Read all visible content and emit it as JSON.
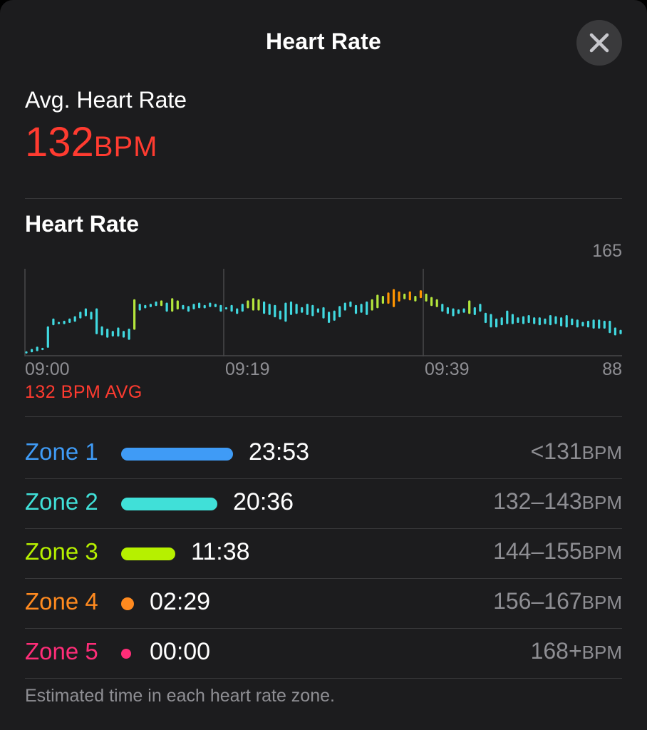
{
  "header": {
    "title": "Heart Rate",
    "close_icon": "close-icon"
  },
  "summary": {
    "label": "Avg. Heart Rate",
    "value": "132",
    "unit": "BPM"
  },
  "section_title": "Heart Rate",
  "chart_data": {
    "type": "range-bar",
    "title": "Heart Rate",
    "y_max_label": "165",
    "y_min_label": "88",
    "ylim": [
      88,
      165
    ],
    "x_labels": [
      "09:00",
      "09:19",
      "09:39"
    ],
    "gridlines": [
      "09:00",
      "09:19",
      "09:39"
    ],
    "avg_label": "132 BPM AVG",
    "avg_value": 132,
    "colors": {
      "zone2": "#40d9e0",
      "zone3": "#b4e63c",
      "zone4": "#ff9500"
    },
    "bars": [
      [
        90,
        92
      ],
      [
        91,
        94
      ],
      [
        92,
        96
      ],
      [
        93,
        95
      ],
      [
        95,
        114
      ],
      [
        115,
        121
      ],
      [
        116,
        118
      ],
      [
        116,
        119
      ],
      [
        117,
        121
      ],
      [
        118,
        123
      ],
      [
        121,
        127
      ],
      [
        123,
        130
      ],
      [
        120,
        127
      ],
      [
        107,
        130
      ],
      [
        106,
        114
      ],
      [
        104,
        112
      ],
      [
        105,
        110
      ],
      [
        105,
        113
      ],
      [
        104,
        110
      ],
      [
        102,
        112
      ],
      [
        111,
        138
      ],
      [
        128,
        134
      ],
      [
        130,
        133
      ],
      [
        131,
        134
      ],
      [
        132,
        136
      ],
      [
        132,
        137
      ],
      [
        127,
        135
      ],
      [
        127,
        139
      ],
      [
        129,
        137
      ],
      [
        129,
        133
      ],
      [
        127,
        132
      ],
      [
        129,
        134
      ],
      [
        130,
        135
      ],
      [
        130,
        133
      ],
      [
        131,
        135
      ],
      [
        131,
        134
      ],
      [
        127,
        133
      ],
      [
        129,
        131
      ],
      [
        127,
        133
      ],
      [
        125,
        130
      ],
      [
        127,
        134
      ],
      [
        130,
        137
      ],
      [
        128,
        139
      ],
      [
        128,
        138
      ],
      [
        125,
        136
      ],
      [
        124,
        134
      ],
      [
        122,
        133
      ],
      [
        120,
        128
      ],
      [
        118,
        135
      ],
      [
        124,
        136
      ],
      [
        125,
        134
      ],
      [
        126,
        131
      ],
      [
        124,
        134
      ],
      [
        123,
        133
      ],
      [
        126,
        130
      ],
      [
        121,
        131
      ],
      [
        117,
        127
      ],
      [
        119,
        128
      ],
      [
        122,
        132
      ],
      [
        128,
        135
      ],
      [
        131,
        136
      ],
      [
        125,
        133
      ],
      [
        126,
        134
      ],
      [
        124,
        136
      ],
      [
        128,
        138
      ],
      [
        130,
        142
      ],
      [
        134,
        141
      ],
      [
        134,
        144
      ],
      [
        131,
        147
      ],
      [
        136,
        145
      ],
      [
        138,
        143
      ],
      [
        137,
        145
      ],
      [
        136,
        141
      ],
      [
        139,
        146
      ],
      [
        136,
        143
      ],
      [
        132,
        140
      ],
      [
        131,
        138
      ],
      [
        127,
        134
      ],
      [
        125,
        131
      ],
      [
        123,
        130
      ],
      [
        125,
        129
      ],
      [
        126,
        130
      ],
      [
        125,
        137
      ],
      [
        124,
        131
      ],
      [
        127,
        134
      ],
      [
        117,
        126
      ],
      [
        113,
        125
      ],
      [
        113,
        121
      ],
      [
        115,
        122
      ],
      [
        116,
        128
      ],
      [
        116,
        125
      ],
      [
        117,
        122
      ],
      [
        116,
        123
      ],
      [
        117,
        124
      ],
      [
        116,
        122
      ],
      [
        115,
        122
      ],
      [
        116,
        121
      ],
      [
        115,
        124
      ],
      [
        116,
        123
      ],
      [
        114,
        122
      ],
      [
        113,
        124
      ],
      [
        115,
        121
      ],
      [
        113,
        120
      ],
      [
        114,
        118
      ],
      [
        113,
        119
      ],
      [
        112,
        120
      ],
      [
        112,
        120
      ],
      [
        112,
        119
      ],
      [
        108,
        119
      ],
      [
        106,
        113
      ],
      [
        107,
        111
      ]
    ]
  },
  "zones": [
    {
      "name": "Zone 1",
      "time": "23:53",
      "range": "<131",
      "unit": "BPM",
      "color": "#3f9bf6",
      "bar_fraction": 1.0
    },
    {
      "name": "Zone 2",
      "time": "20:36",
      "range": "132–143",
      "unit": "BPM",
      "color": "#40e0d8",
      "bar_fraction": 0.862
    },
    {
      "name": "Zone 3",
      "time": "11:38",
      "range": "144–155",
      "unit": "BPM",
      "color": "#b6f000",
      "bar_fraction": 0.487
    },
    {
      "name": "Zone 4",
      "time": "02:29",
      "range": "156–167",
      "unit": "BPM",
      "color": "#ff8a1f",
      "bar_fraction": 0.104
    },
    {
      "name": "Zone 5",
      "time": "00:00",
      "range": "168+",
      "unit": "BPM",
      "color": "#ff2d78",
      "bar_fraction": 0.0
    }
  ],
  "footnote": "Estimated time in each heart rate zone."
}
